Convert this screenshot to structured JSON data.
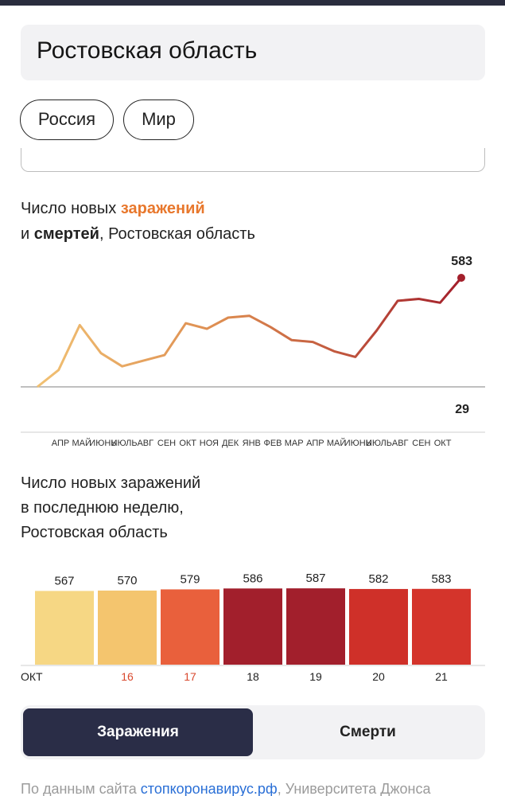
{
  "region": "Ростовская область",
  "scope_buttons": [
    "Россия",
    "Мир"
  ],
  "chart1": {
    "title_prefix": "Число новых ",
    "title_infections": "заражений",
    "title_and": "и ",
    "title_deaths": "смертей",
    "title_suffix": ", Ростовская область",
    "last_value_label": "583",
    "deaths_value_label": "29"
  },
  "chart2": {
    "title_lines": [
      "Число новых заражений",
      "в последнюю неделю,",
      "Ростовская область"
    ]
  },
  "toggle": {
    "infections": "Заражения",
    "deaths": "Смерти"
  },
  "source": {
    "prefix": "По данным сайта ",
    "link": "стопкоронавирус.рф",
    "suffix": ", Университета Джонса"
  },
  "colors": {
    "infections_accent": "#e8782d",
    "line_start": "#f1c173",
    "line_end": "#a31f2b",
    "toggle_active": "#2a2d47",
    "topbar": "#2a2d3e"
  },
  "chart_data": [
    {
      "type": "line",
      "title": "Число новых заражений и смертей, Ростовская область",
      "xlabel": "",
      "ylabel": "",
      "x_tick_labels": [
        "АПР",
        "МАЙ",
        "ИЮНЬ",
        "ИЮЛЬ",
        "АВГ",
        "СЕН",
        "ОКТ",
        "НОЯ",
        "ДЕК",
        "ЯНВ",
        "ФЕВ",
        "МАР",
        "АПР",
        "МАЙ",
        "ИЮНЬ",
        "ИЮЛЬ",
        "АВГ",
        "СЕН",
        "ОКТ"
      ],
      "ylim": [
        0,
        600
      ],
      "series": [
        {
          "name": "заражений",
          "x": [
            "АПР",
            "МАЙ",
            "МАЙ",
            "ИЮНЬ",
            "ИЮЛЬ",
            "АВГ",
            "СЕН",
            "СЕН",
            "ОКТ",
            "НОЯ",
            "ДЕК",
            "ЯНВ",
            "ФЕВ",
            "МАР",
            "АПР",
            "МАЙ",
            "ИЮНЬ",
            "ИЮЛЬ",
            "АВГ",
            "СЕН",
            "ОКТ"
          ],
          "values": [
            0,
            90,
            330,
            180,
            110,
            140,
            170,
            340,
            310,
            370,
            380,
            320,
            250,
            240,
            190,
            160,
            300,
            460,
            470,
            450,
            583
          ]
        },
        {
          "name": "смертей",
          "x": [
            "ОКТ"
          ],
          "values": [
            29
          ]
        }
      ]
    },
    {
      "type": "bar",
      "title": "Число новых заражений в последнюю неделю, Ростовская область",
      "categories": [
        "ОКТ",
        "16",
        "17",
        "18",
        "19",
        "20",
        "21"
      ],
      "values": [
        567,
        570,
        579,
        586,
        587,
        582,
        583
      ],
      "bar_colors": [
        "#f6d784",
        "#f4c56e",
        "#e9603c",
        "#a21f2c",
        "#a21f2c",
        "#cf3029",
        "#d4342b"
      ],
      "label_colors": [
        "#222222",
        "#d9492e",
        "#d9492e",
        "#222222",
        "#222222",
        "#222222",
        "#222222"
      ]
    }
  ]
}
